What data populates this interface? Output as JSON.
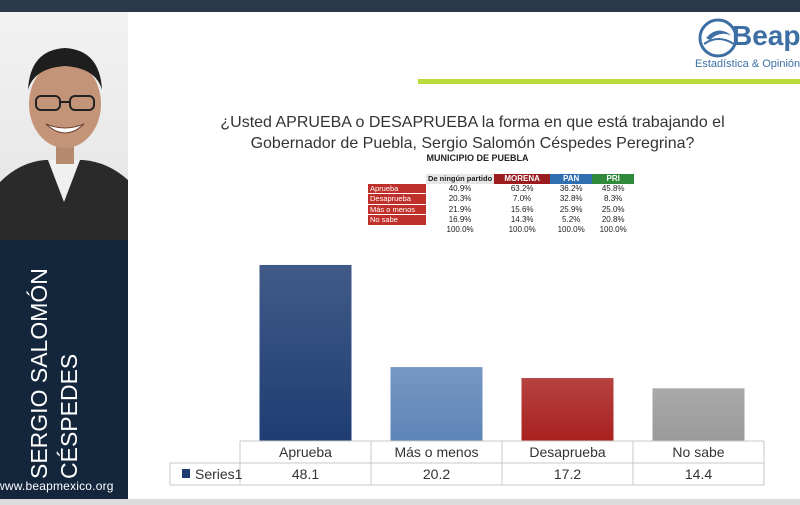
{
  "side_panel": {
    "name_line1": "SERGIO SALOMÓN",
    "name_line2": "CÉSPEDES",
    "website": "www.beapmexico.org"
  },
  "logo": {
    "name": "Beap",
    "tagline": "Estadística & Opinión P"
  },
  "question": {
    "line1": "¿Usted APRUEBA o DESAPRUEBA la forma en que está trabajando el",
    "line2": "Gobernador de Puebla, Sergio Salomón Céspedes Peregrina?",
    "subtitle": "MUNICIPIO DE PUEBLA"
  },
  "crosstab": {
    "headers": [
      "De ningún partido",
      "MORENA",
      "PAN",
      "PRI"
    ],
    "rows": [
      {
        "label": "Aprueba",
        "values": [
          "40.9%",
          "63.2%",
          "36.2%",
          "45.8%"
        ]
      },
      {
        "label": "Desaprueba",
        "values": [
          "20.3%",
          "7.0%",
          "32.8%",
          "8.3%"
        ]
      },
      {
        "label": "Más o menos",
        "values": [
          "21.9%",
          "15.6%",
          "25.9%",
          "25.0%"
        ]
      },
      {
        "label": "No sabe",
        "values": [
          "16.9%",
          "14.3%",
          "5.2%",
          "20.8%"
        ]
      },
      {
        "label": "",
        "values": [
          "100.0%",
          "100.0%",
          "100.0%",
          "100.0%"
        ]
      }
    ]
  },
  "chart_data": {
    "type": "bar",
    "categories": [
      "Aprueba",
      "Más o menos",
      "Desaprueba",
      "No sabe"
    ],
    "series": [
      {
        "name": "Series1",
        "values": [
          48.1,
          20.2,
          17.2,
          14.4
        ]
      }
    ],
    "colors": [
      "#1f3d73",
      "#5e85b8",
      "#a8211f",
      "#9a9a9a"
    ],
    "ylim": [
      0,
      50
    ],
    "legend": "data-table-bottom",
    "grid": false
  }
}
